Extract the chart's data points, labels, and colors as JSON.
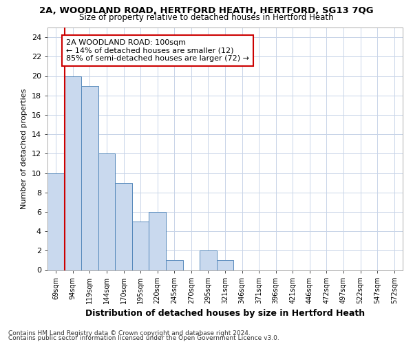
{
  "title1": "2A, WOODLAND ROAD, HERTFORD HEATH, HERTFORD, SG13 7QG",
  "title2": "Size of property relative to detached houses in Hertford Heath",
  "xlabel": "Distribution of detached houses by size in Hertford Heath",
  "ylabel": "Number of detached properties",
  "footnote1": "Contains HM Land Registry data © Crown copyright and database right 2024.",
  "footnote2": "Contains public sector information licensed under the Open Government Licence v3.0.",
  "annotation_line1": "2A WOODLAND ROAD: 100sqm",
  "annotation_line2": "← 14% of detached houses are smaller (12)",
  "annotation_line3": "85% of semi-detached houses are larger (72) →",
  "bar_categories": [
    "69sqm",
    "94sqm",
    "119sqm",
    "144sqm",
    "170sqm",
    "195sqm",
    "220sqm",
    "245sqm",
    "270sqm",
    "295sqm",
    "321sqm",
    "346sqm",
    "371sqm",
    "396sqm",
    "421sqm",
    "446sqm",
    "472sqm",
    "497sqm",
    "522sqm",
    "547sqm",
    "572sqm"
  ],
  "bar_heights": [
    10,
    20,
    19,
    12,
    9,
    5,
    6,
    1,
    0,
    2,
    1,
    0,
    0,
    0,
    0,
    0,
    0,
    0,
    0,
    0,
    0
  ],
  "bar_color": "#c9d9ee",
  "bar_edge_color": "#5588bb",
  "vline_position": 1.5,
  "vline_color": "#cc0000",
  "ylim": [
    0,
    25
  ],
  "yticks": [
    0,
    2,
    4,
    6,
    8,
    10,
    12,
    14,
    16,
    18,
    20,
    22,
    24
  ],
  "annotation_box_color": "#cc0000",
  "bg_color": "#ffffff",
  "grid_color": "#c8d4e8",
  "title1_fontsize": 9.5,
  "title2_fontsize": 8.5,
  "ylabel_fontsize": 8,
  "xlabel_fontsize": 9,
  "footnote_fontsize": 6.5
}
